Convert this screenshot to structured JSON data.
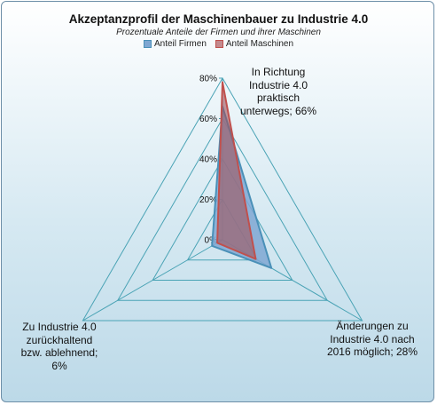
{
  "chart_data": {
    "type": "radar",
    "title": "Akzeptanzprofil der Maschinenbauer zu Industrie 4.0",
    "subtitle": "Prozentuale Anteile der Firmen  und ihrer Maschinen",
    "categories": [
      "In Richtung Industrie 4.0 praktisch unterwegs; 66%",
      "Änderungen zu Industrie 4.0 nach 2016 möglich; 28%",
      "Zu Industrie 4.0 zurückhaltend bzw. ablehnend;  6%"
    ],
    "series": [
      {
        "name": "Anteil Firmen",
        "values": [
          66,
          28,
          6
        ],
        "color": "#4a90b8"
      },
      {
        "name": "Anteil Maschinen",
        "values": [
          78,
          19,
          3
        ],
        "color": "#c0504d"
      }
    ],
    "rlim": [
      0,
      80
    ],
    "tick_labels": [
      "0%",
      "20%",
      "40%",
      "60%",
      "80%"
    ],
    "grid": true
  },
  "colors": {
    "grid": "#4aa3b5",
    "firmen_fill": "#7fa7d2",
    "maschinen_fill": "#a0525a"
  }
}
